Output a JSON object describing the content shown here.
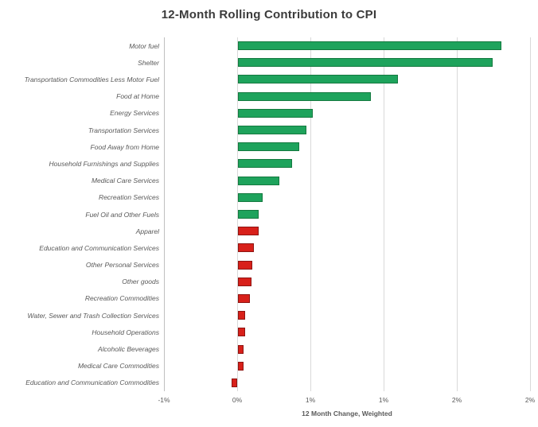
{
  "chart_data": {
    "type": "bar",
    "orientation": "horizontal",
    "title": "12-Month Rolling Contribution to CPI",
    "xlabel": "12 Month Change, Weighted",
    "ylabel": "",
    "unit": "percent",
    "grid": true,
    "legend": null,
    "xlim": [
      -0.5,
      2.0
    ],
    "x_tick_values": [
      -0.5,
      0,
      0.5,
      1.0,
      1.5,
      2.0
    ],
    "x_tick_labels": [
      "-1%",
      "0%",
      "1%",
      "1%",
      "2%",
      "2%"
    ],
    "categories": [
      "Motor fuel",
      "Shelter",
      "Transportation Commodities Less Motor Fuel",
      "Food at Home",
      "Energy Services",
      "Transportation Services",
      "Food Away from Home",
      "Household Furnishings and Supplies",
      "Medical Care Services",
      "Recreation Services",
      "Fuel Oil and Other Fuels",
      "Apparel",
      "Education and Communication Services",
      "Other Personal Services",
      "Other goods",
      "Recreation Commodities",
      "Water, Sewer and Trash Collection Services",
      "Household Operations",
      "Alcoholic Beverages",
      "Medical Care Commodities",
      "Education and Communication Commodities"
    ],
    "values": [
      1.8,
      1.74,
      1.09,
      0.91,
      0.51,
      0.47,
      0.42,
      0.37,
      0.28,
      0.17,
      0.14,
      0.14,
      0.11,
      0.1,
      0.09,
      0.08,
      0.05,
      0.05,
      0.04,
      0.04,
      -0.04
    ],
    "bar_color_names": [
      "green",
      "green",
      "green",
      "green",
      "green",
      "green",
      "green",
      "green",
      "green",
      "green",
      "green",
      "red",
      "red",
      "red",
      "red",
      "red",
      "red",
      "red",
      "red",
      "red",
      "red"
    ],
    "palette": {
      "green_fill": "#1ea35c",
      "green_border": "#14793f",
      "red_fill": "#d8201a",
      "red_border": "#8e1512",
      "gridline": "#d9d9d9",
      "axis_line": "#bfbfbf",
      "title_color": "#3b3b3b",
      "label_color": "#595959"
    }
  }
}
